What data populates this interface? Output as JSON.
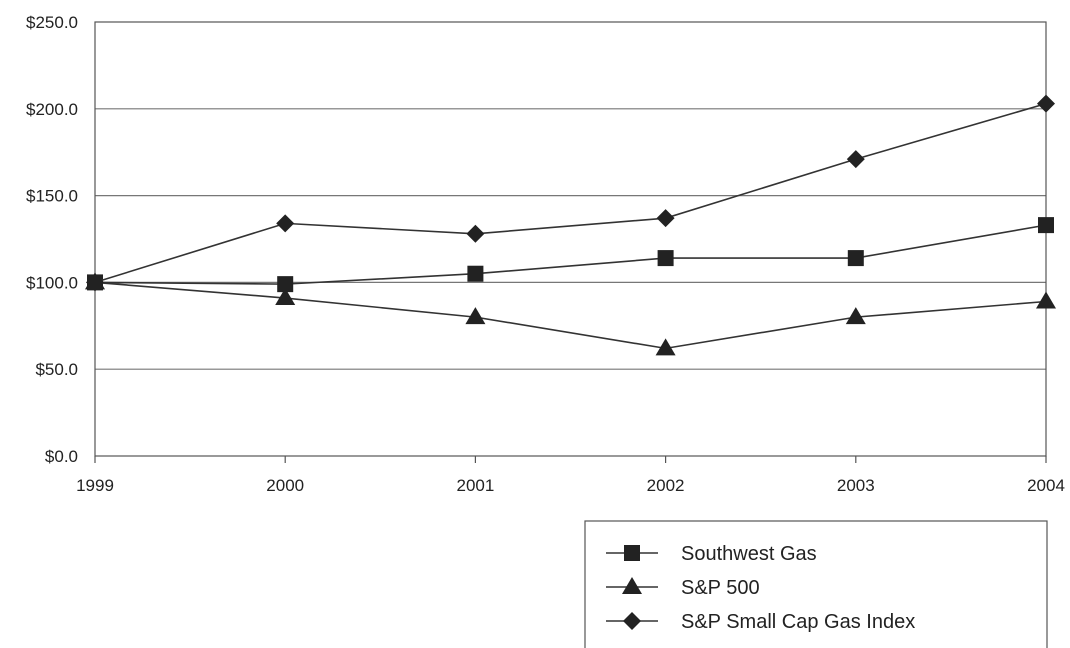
{
  "chart_data": {
    "type": "line",
    "x": [
      "1999",
      "2000",
      "2001",
      "2002",
      "2003",
      "2004"
    ],
    "ylim": [
      0,
      250
    ],
    "yticks": [
      "$0.0",
      "$50.0",
      "$100.0",
      "$150.0",
      "$200.0",
      "$250.0"
    ],
    "ytick_values": [
      0,
      50,
      100,
      150,
      200,
      250
    ],
    "grid": "horizontal",
    "legend_position": "bottom-right",
    "series": [
      {
        "name": "Southwest Gas",
        "marker": "square",
        "values": [
          100,
          99,
          105,
          114,
          114,
          133
        ]
      },
      {
        "name": "S&P 500",
        "marker": "triangle",
        "values": [
          100,
          91,
          80,
          62,
          80,
          89
        ]
      },
      {
        "name": "S&P Small Cap Gas Index",
        "marker": "diamond",
        "values": [
          100,
          134,
          128,
          137,
          171,
          203
        ]
      }
    ],
    "line_color": "#333333",
    "marker_color": "#222222",
    "grid_color": "#777777"
  }
}
